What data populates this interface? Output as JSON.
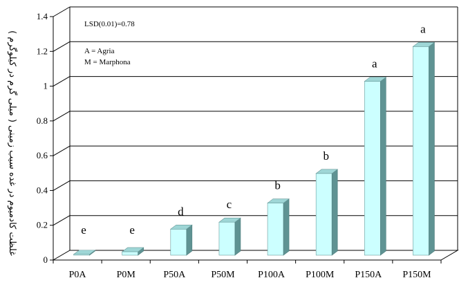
{
  "chart_data": {
    "type": "bar",
    "style": "3d",
    "title": "",
    "ylabel": "غلظت کادمیوم در غده سیب زمینی ( میلی گرم در کیلوگرم )",
    "xlabel": "",
    "ylim": [
      0,
      1.4
    ],
    "yticks": [
      0,
      0.2,
      0.4,
      0.6,
      0.8,
      1,
      1.2,
      1.4
    ],
    "ytick_labels": [
      "0",
      "0.2",
      "0.4",
      "0.6",
      "0.8",
      "1",
      "1.2",
      "1.4"
    ],
    "categories": [
      "P0A",
      "P0M",
      "P50A",
      "P50M",
      "P100A",
      "P100M",
      "P150A",
      "P150M"
    ],
    "values": [
      0.005,
      0.02,
      0.15,
      0.19,
      0.3,
      0.47,
      1.0,
      1.2
    ],
    "significance_letters": [
      "e",
      "e",
      "d",
      "c",
      "b",
      "b",
      "a",
      "a"
    ],
    "annotations": {
      "lsd": "LSD(0.01)=0.78",
      "legend_a": "A = Agria",
      "legend_m": "M = Marphona"
    },
    "grid": true,
    "colors": {
      "bar_front": "#ccffff",
      "bar_side": "#5f9393",
      "bar_top": "#9ed6d6",
      "grid": "#000000"
    }
  }
}
